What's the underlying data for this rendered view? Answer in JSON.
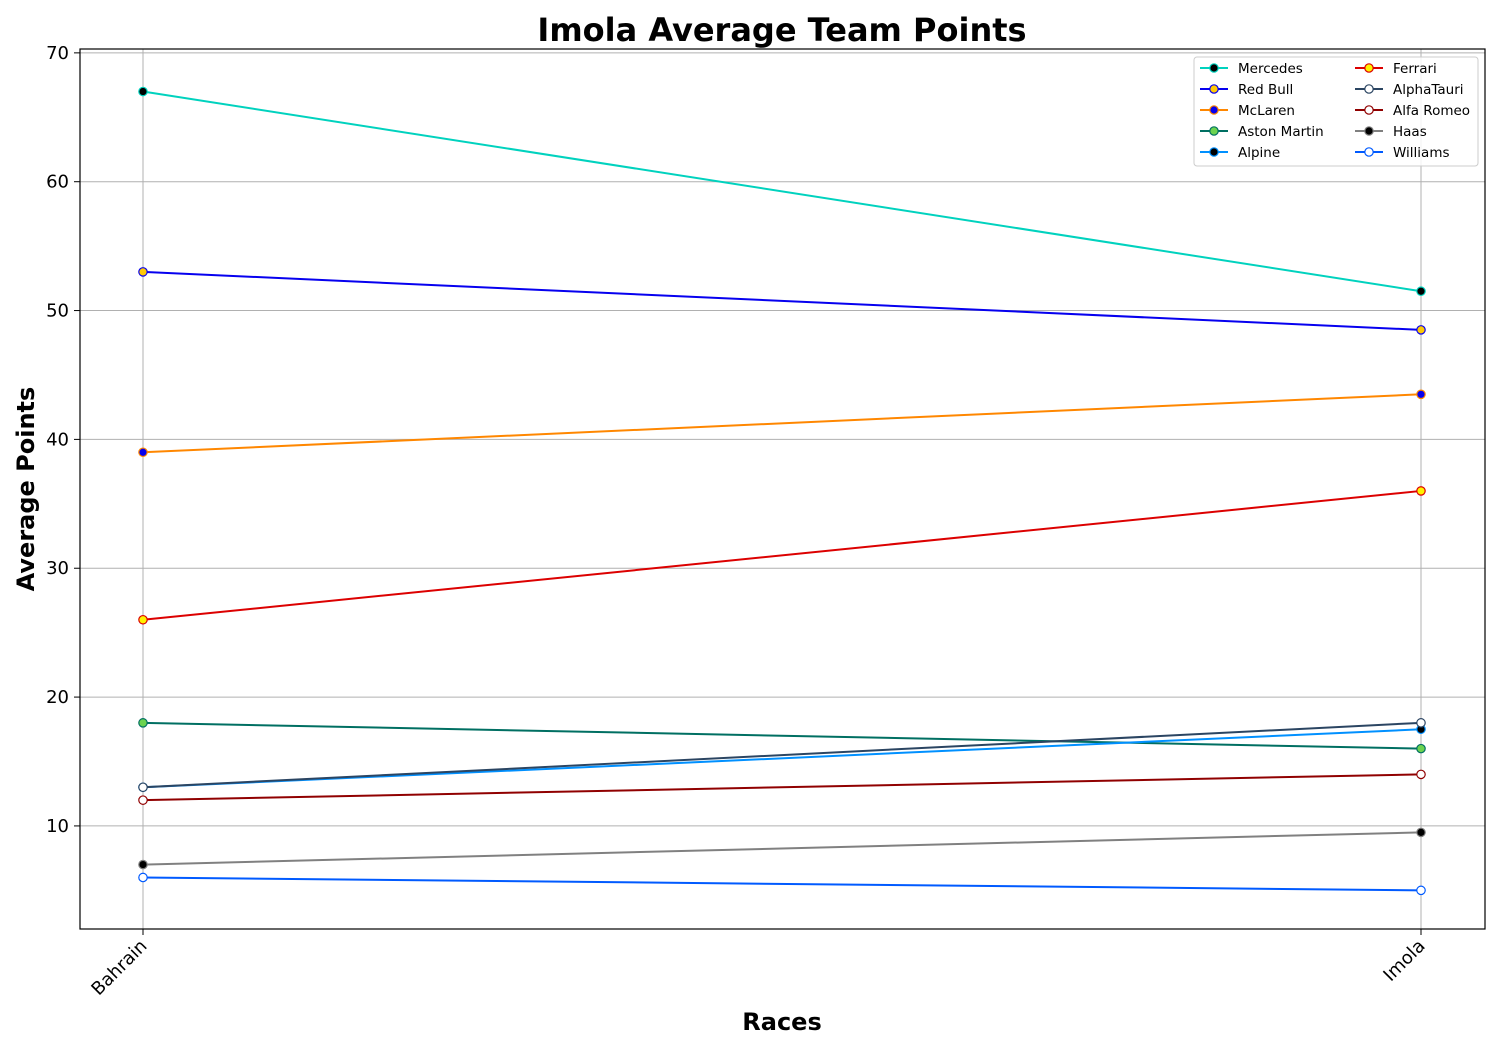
{
  "chart_data": {
    "type": "line",
    "title": "Imola Average Team Points",
    "xlabel": "Races",
    "ylabel": "Average Points",
    "categories": [
      "Bahrain",
      "Imola"
    ],
    "ylim": [
      2,
      70.3
    ],
    "yticks": [
      10,
      20,
      30,
      40,
      50,
      60,
      70
    ],
    "grid": true,
    "legend_position": "top-right",
    "legend_columns": 2,
    "series": [
      {
        "name": "Mercedes",
        "values": [
          67,
          51.5
        ],
        "color": "#00D2BE",
        "marker_fill": "#000000",
        "marker_edge": "#00D2BE"
      },
      {
        "name": "Red Bull",
        "values": [
          53,
          48.5
        ],
        "color": "#0600EF",
        "marker_fill": "#FFC906",
        "marker_edge": "#0600EF"
      },
      {
        "name": "McLaren",
        "values": [
          39,
          43.5
        ],
        "color": "#FF8700",
        "marker_fill": "#0600EF",
        "marker_edge": "#FF8700"
      },
      {
        "name": "Aston Martin",
        "values": [
          18,
          16
        ],
        "color": "#006F62",
        "marker_fill": "#6CD34F",
        "marker_edge": "#006F62"
      },
      {
        "name": "Alpine",
        "values": [
          13,
          17.5
        ],
        "color": "#0090FF",
        "marker_fill": "#000000",
        "marker_edge": "#0090FF"
      },
      {
        "name": "Ferrari",
        "values": [
          26,
          36
        ],
        "color": "#DC0000",
        "marker_fill": "#FFF200",
        "marker_edge": "#DC0000"
      },
      {
        "name": "AlphaTauri",
        "values": [
          13,
          18
        ],
        "color": "#2B4562",
        "marker_fill": "#FFFFFF",
        "marker_edge": "#2B4562"
      },
      {
        "name": "Alfa Romeo",
        "values": [
          12,
          14
        ],
        "color": "#900000",
        "marker_fill": "#FFFFFF",
        "marker_edge": "#900000"
      },
      {
        "name": "Haas",
        "values": [
          7,
          9.5
        ],
        "color": "#808080",
        "marker_fill": "#000000",
        "marker_edge": "#808080"
      },
      {
        "name": "Williams",
        "values": [
          6,
          5
        ],
        "color": "#005AFF",
        "marker_fill": "#FFFFFF",
        "marker_edge": "#005AFF"
      }
    ]
  }
}
